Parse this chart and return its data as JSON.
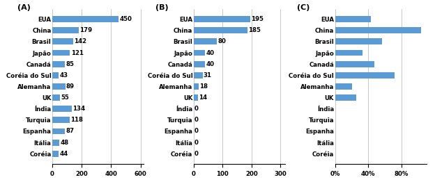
{
  "countries": [
    "EUA",
    "China",
    "Brasil",
    "Japão",
    "Canadá",
    "Coréia do Sul",
    "Alemanha",
    "UK",
    "Índia",
    "Turquia",
    "Espanha",
    "Itália",
    "Coréia"
  ],
  "articles": [
    450,
    179,
    142,
    121,
    85,
    43,
    89,
    55,
    134,
    118,
    87,
    48,
    44
  ],
  "patents": [
    195,
    185,
    80,
    40,
    40,
    31,
    18,
    14,
    0,
    0,
    0,
    0,
    0
  ],
  "bar_color": "#5B9BD5",
  "label_fontsize": 6.2,
  "tick_fontsize": 6.2,
  "panel_label_fontsize": 8,
  "bar_height": 0.55
}
